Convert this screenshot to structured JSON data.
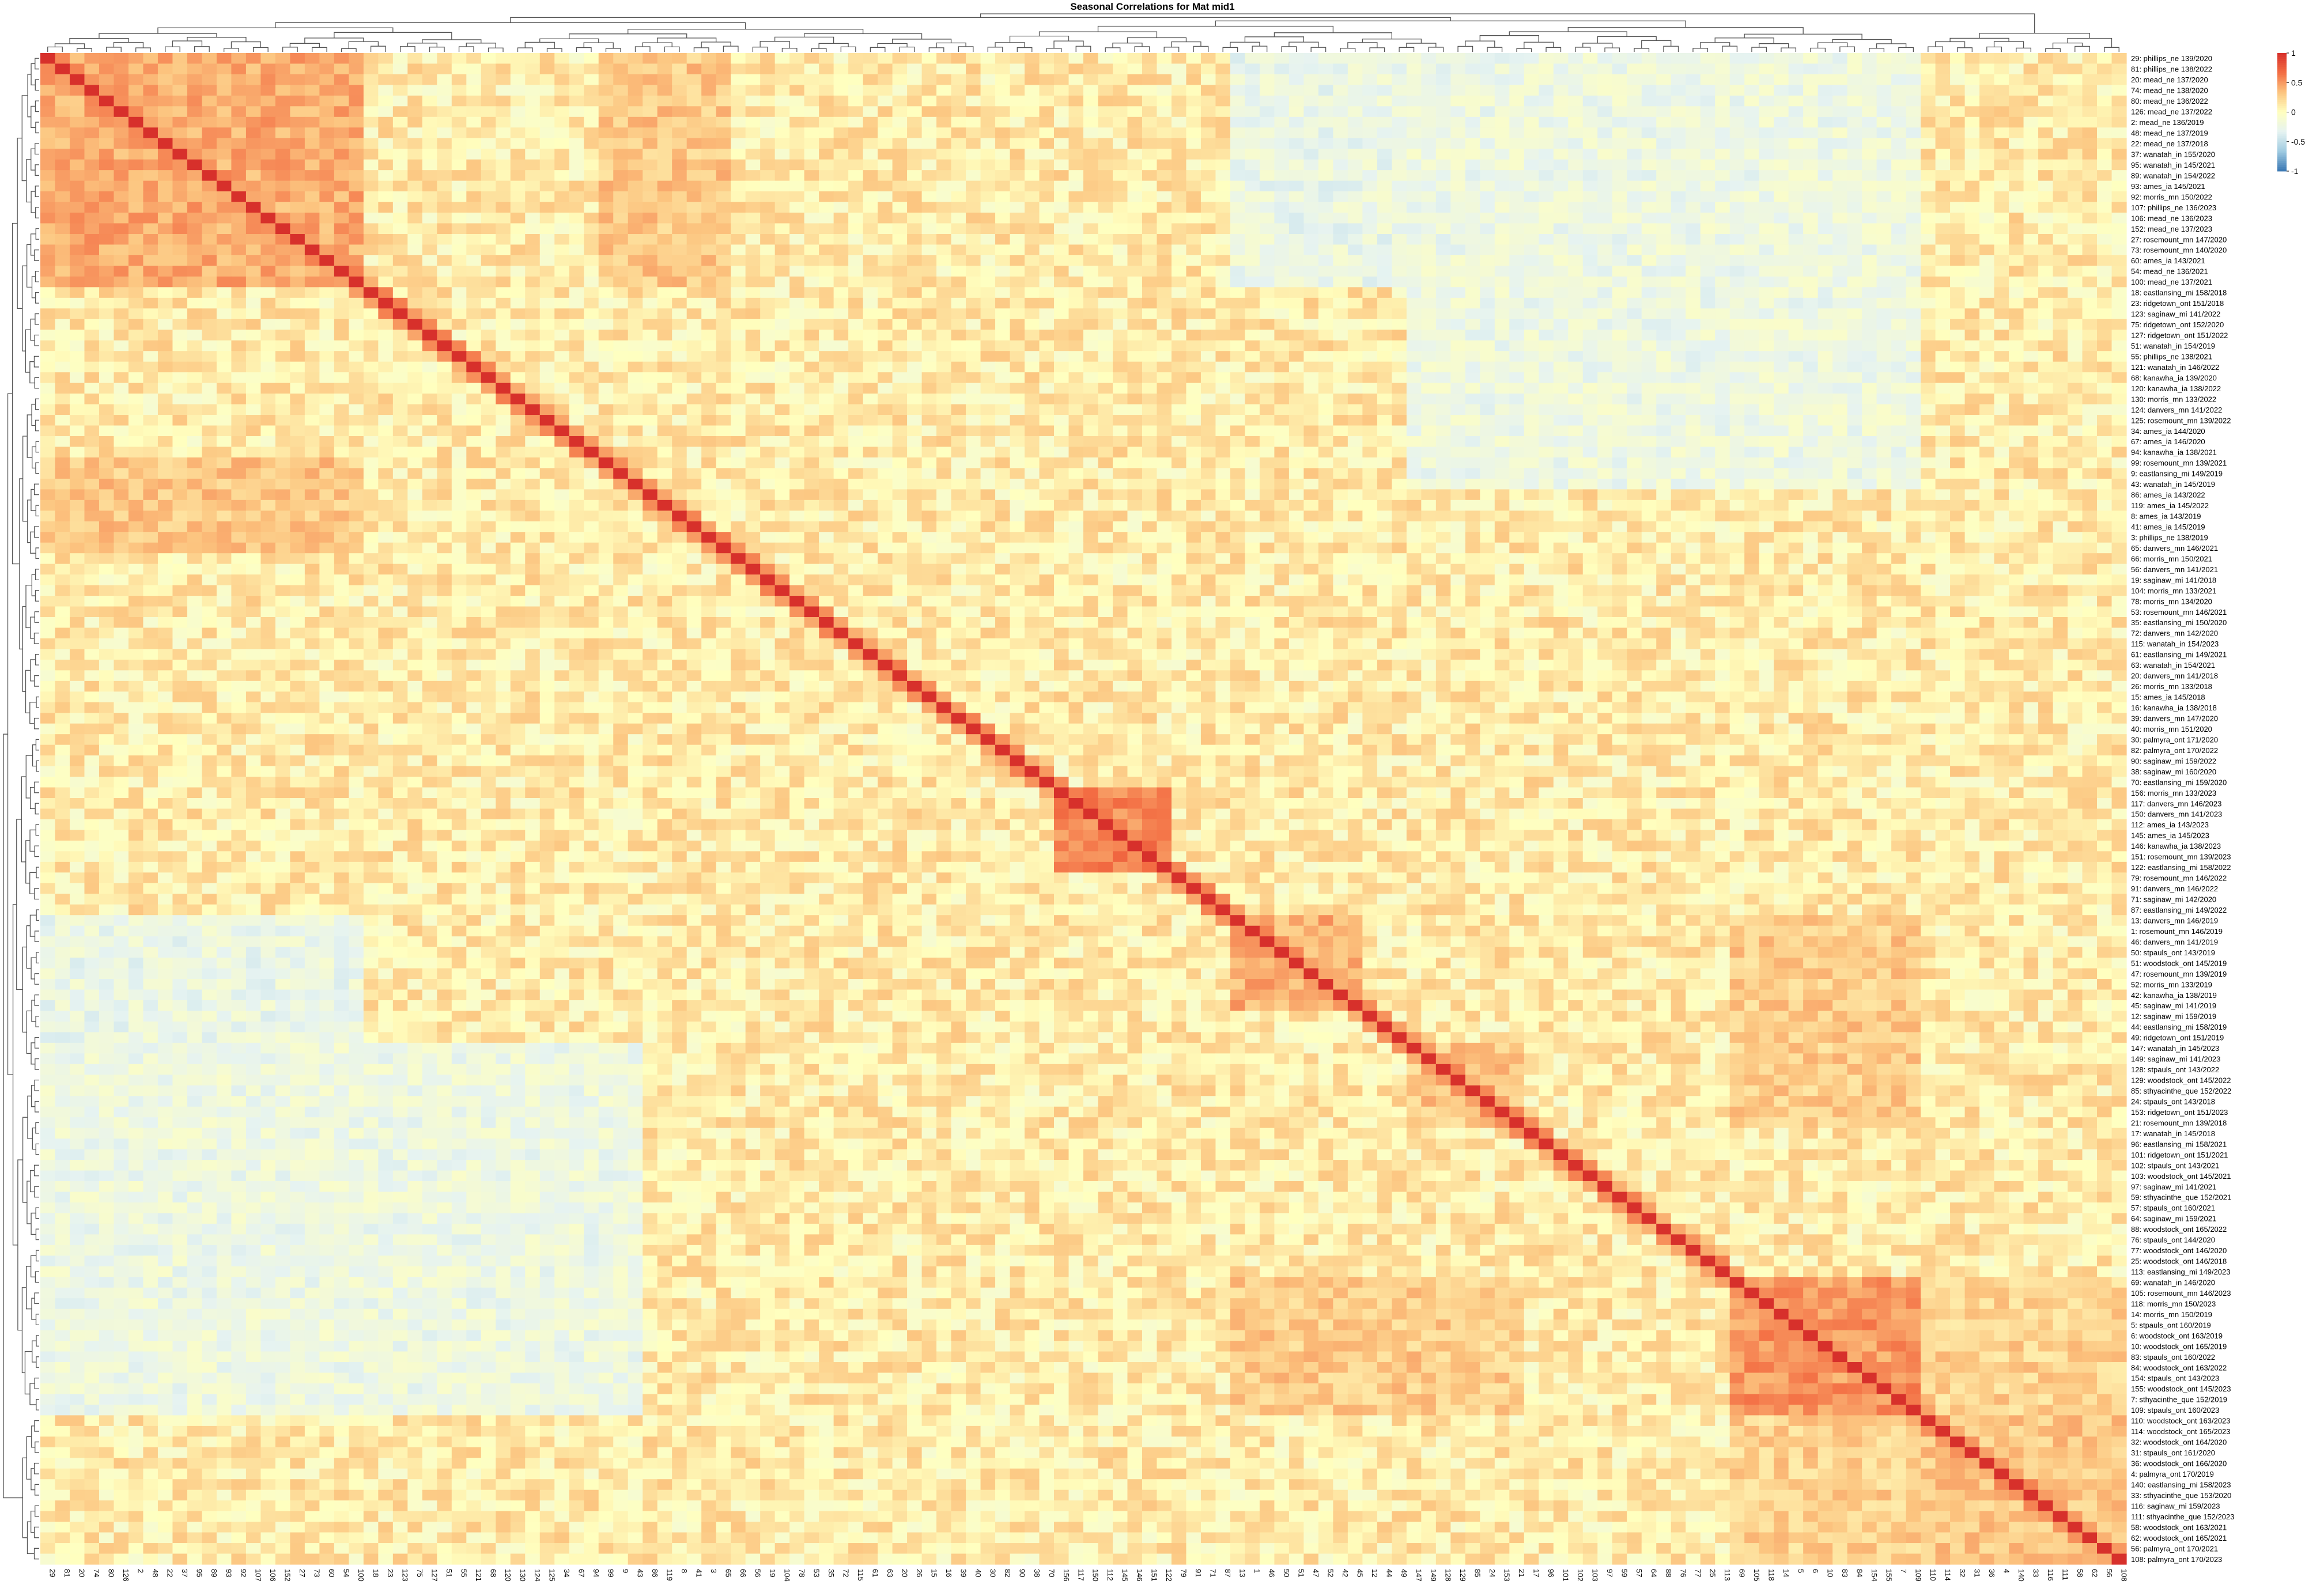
{
  "chart_data": {
    "type": "heatmap",
    "title": "Seasonal Correlations for Mat mid1",
    "xlabel": "",
    "ylabel": "",
    "value_range": [
      -1,
      1
    ],
    "colorbar": {
      "ticks": [
        1,
        0.5,
        0,
        -0.5,
        -1
      ],
      "tick_labels": [
        "1",
        "0.5",
        "0",
        "-0.5",
        "-1"
      ],
      "colors": [
        "#3A77B3",
        "#9FCBE1",
        "#E6F3F1",
        "#FFFFBF",
        "#FCC47F",
        "#F36D43",
        "#D7302B"
      ]
    },
    "row_labels": [
      "29: phillips_ne 139/2020",
      "81: phillips_ne 138/2022",
      "20: mead_ne 137/2020",
      "74: mead_ne 138/2020",
      "80: mead_ne 136/2022",
      "126: mead_ne 137/2022",
      "2: mead_ne 136/2019",
      "48: mead_ne 137/2019",
      "22: mead_ne 137/2018",
      "37: wanatah_in 155/2020",
      "95: wanatah_in 145/2021",
      "89: wanatah_in 154/2022",
      "93: ames_ia 145/2021",
      "92: morris_mn 150/2022",
      "107: phillips_ne 136/2023",
      "106: mead_ne 136/2023",
      "152: mead_ne 137/2023",
      "27: rosemount_mn 147/2020",
      "73: rosemount_mn 140/2020",
      "60: ames_ia 143/2021",
      "54: mead_ne 136/2021",
      "100: mead_ne 137/2021",
      "18: eastlansing_mi 158/2018",
      "23: ridgetown_ont 151/2018",
      "123: saginaw_mi 141/2022",
      "75: ridgetown_ont 152/2020",
      "127: ridgetown_ont 151/2022",
      "51: wanatah_in 154/2019",
      "55: phillips_ne 138/2021",
      "121: wanatah_in 146/2022",
      "68: kanawha_ia 139/2020",
      "120: kanawha_ia 138/2022",
      "130: morris_mn 133/2022",
      "124: danvers_mn 141/2022",
      "125: rosemount_mn 139/2022",
      "34: ames_ia 144/2020",
      "67: ames_ia 146/2020",
      "94: kanawha_ia 138/2021",
      "99: rosemount_mn 139/2021",
      "9: eastlansing_mi 149/2019",
      "43: wanatah_in 145/2019",
      "86: ames_ia 143/2022",
      "119: ames_ia 145/2022",
      "8: ames_ia 143/2019",
      "41: ames_ia 145/2019",
      "3: phillips_ne 138/2019",
      "65: danvers_mn 146/2021",
      "66: morris_mn 150/2021",
      "56: danvers_mn 141/2021",
      "19: saginaw_mi 141/2018",
      "104: morris_mn 133/2021",
      "78: morris_mn 134/2020",
      "53: rosemount_mn 146/2021",
      "35: eastlansing_mi 150/2020",
      "72: danvers_mn 142/2020",
      "115: wanatah_in 154/2023",
      "61: eastlansing_mi 149/2021",
      "63: wanatah_in 154/2021",
      "20: danvers_mn 141/2018",
      "26: morris_mn 133/2018",
      "15: ames_ia 145/2018",
      "16: kanawha_ia 138/2018",
      "39: danvers_mn 147/2020",
      "40: morris_mn 151/2020",
      "30: palmyra_ont 171/2020",
      "82: palmyra_ont 170/2022",
      "90: saginaw_mi 159/2022",
      "38: saginaw_mi 160/2020",
      "70: eastlansing_mi 159/2020",
      "156: morris_mn 133/2023",
      "117: danvers_mn 146/2023",
      "150: danvers_mn 141/2023",
      "112: ames_ia 143/2023",
      "145: ames_ia 145/2023",
      "146: kanawha_ia 138/2023",
      "151: rosemount_mn 139/2023",
      "122: eastlansing_mi 158/2022",
      "79: rosemount_mn 146/2022",
      "91: danvers_mn 146/2022",
      "71: saginaw_mi 142/2020",
      "87: eastlansing_mi 149/2022",
      "13: danvers_mn 146/2019",
      "1: rosemount_mn 146/2019",
      "46: danvers_mn 141/2019",
      "50: stpauls_ont 143/2019",
      "51: woodstock_ont 145/2019",
      "47: rosemount_mn 139/2019",
      "52: morris_mn 133/2019",
      "42: kanawha_ia 138/2019",
      "45: saginaw_mi 141/2019",
      "12: saginaw_mi 159/2019",
      "44: eastlansing_mi 158/2019",
      "49: ridgetown_ont 151/2019",
      "147: wanatah_in 145/2023",
      "149: saginaw_mi 141/2023",
      "128: stpauls_ont 143/2022",
      "129: woodstock_ont 145/2022",
      "85: sthyacinthe_que 152/2022",
      "24: stpauls_ont 143/2018",
      "153: ridgetown_ont 151/2023",
      "21: rosemount_mn 139/2018",
      "17: wanatah_in 145/2018",
      "96: eastlansing_mi 158/2021",
      "101: ridgetown_ont 151/2021",
      "102: stpauls_ont 143/2021",
      "103: woodstock_ont 145/2021",
      "97: saginaw_mi 141/2021",
      "59: sthyacinthe_que 152/2021",
      "57: stpauls_ont 160/2021",
      "64: saginaw_mi 159/2021",
      "88: woodstock_ont 165/2022",
      "76: stpauls_ont 144/2020",
      "77: woodstock_ont 146/2020",
      "25: woodstock_ont 146/2018",
      "113: eastlansing_mi 149/2023",
      "69: wanatah_in 146/2020",
      "105: rosemount_mn 146/2023",
      "118: morris_mn 150/2023",
      "14: morris_mn 150/2019",
      "5: stpauls_ont 160/2019",
      "6: woodstock_ont 163/2019",
      "10: woodstock_ont 165/2019",
      "83: stpauls_ont 160/2022",
      "84: woodstock_ont 163/2022",
      "154: stpauls_ont 143/2023",
      "155: woodstock_ont 145/2023",
      "7: sthyacinthe_que 152/2019",
      "109: stpauls_ont 160/2023",
      "110: woodstock_ont 163/2023",
      "114: woodstock_ont 165/2023",
      "32: woodstock_ont 164/2020",
      "31: stpauls_ont 161/2020",
      "36: woodstock_ont 166/2020",
      "4: palmyra_ont 170/2019",
      "140: eastlansing_mi 158/2023",
      "33: sthyacinthe_que 153/2020",
      "116: saginaw_mi 159/2023",
      "111: sthyacinthe_que 152/2023",
      "58: woodstock_ont 163/2021",
      "62: woodstock_ont 165/2021",
      "56: palmyra_ont 170/2021",
      "108: palmyra_ont 170/2023"
    ],
    "col_labels": [
      "29",
      "81",
      "20",
      "74",
      "80",
      "126",
      "2",
      "48",
      "22",
      "37",
      "95",
      "89",
      "93",
      "92",
      "107",
      "106",
      "152",
      "27",
      "73",
      "60",
      "54",
      "100",
      "18",
      "23",
      "123",
      "75",
      "127",
      "51",
      "55",
      "121",
      "68",
      "120",
      "130",
      "124",
      "125",
      "34",
      "67",
      "94",
      "99",
      "9",
      "43",
      "86",
      "119",
      "8",
      "41",
      "3",
      "65",
      "66",
      "56",
      "19",
      "104",
      "78",
      "53",
      "35",
      "72",
      "115",
      "61",
      "63",
      "20",
      "26",
      "15",
      "16",
      "39",
      "40",
      "30",
      "82",
      "90",
      "38",
      "70",
      "156",
      "117",
      "150",
      "112",
      "145",
      "146",
      "151",
      "122",
      "79",
      "91",
      "71",
      "87",
      "13",
      "1",
      "46",
      "50",
      "51",
      "47",
      "52",
      "42",
      "45",
      "12",
      "44",
      "49",
      "147",
      "149",
      "128",
      "129",
      "85",
      "24",
      "153",
      "21",
      "17",
      "96",
      "101",
      "102",
      "103",
      "97",
      "59",
      "57",
      "64",
      "88",
      "76",
      "77",
      "25",
      "113",
      "69",
      "105",
      "118",
      "14",
      "5",
      "6",
      "10",
      "83",
      "84",
      "154",
      "155",
      "7",
      "109",
      "110",
      "114",
      "32",
      "31",
      "36",
      "4",
      "140",
      "33",
      "116",
      "111",
      "58",
      "62",
      "56",
      "108"
    ],
    "blocks": [
      {
        "rows": [
          0,
          21
        ],
        "cols": [
          0,
          21
        ],
        "value": 0.42
      },
      {
        "rows": [
          0,
          21
        ],
        "cols": [
          38,
          46
        ],
        "value": 0.3
      },
      {
        "rows": [
          38,
          46
        ],
        "cols": [
          0,
          21
        ],
        "value": 0.3
      },
      {
        "rows": [
          69,
          76
        ],
        "cols": [
          69,
          76
        ],
        "value": 0.58
      },
      {
        "rows": [
          81,
          89
        ],
        "cols": [
          81,
          89
        ],
        "value": 0.4
      },
      {
        "rows": [
          93,
          100
        ],
        "cols": [
          93,
          100
        ],
        "value": 0.3
      },
      {
        "rows": [
          115,
          127
        ],
        "cols": [
          115,
          127
        ],
        "value": 0.5
      },
      {
        "rows": [
          115,
          127
        ],
        "cols": [
          81,
          100
        ],
        "value": 0.28
      },
      {
        "rows": [
          81,
          100
        ],
        "cols": [
          115,
          127
        ],
        "value": 0.28
      },
      {
        "rows": [
          115,
          127
        ],
        "cols": [
          0,
          21
        ],
        "value": -0.45
      },
      {
        "rows": [
          0,
          21
        ],
        "cols": [
          115,
          127
        ],
        "value": -0.45
      },
      {
        "rows": [
          0,
          21
        ],
        "cols": [
          81,
          100
        ],
        "value": -0.25
      },
      {
        "rows": [
          81,
          100
        ],
        "cols": [
          0,
          21
        ],
        "value": -0.25
      },
      {
        "rows": [
          128,
          141
        ],
        "cols": [
          128,
          141
        ],
        "value": 0.3
      },
      {
        "rows": [
          128,
          141
        ],
        "cols": [
          115,
          127
        ],
        "value": 0.25
      },
      {
        "rows": [
          115,
          127
        ],
        "cols": [
          128,
          141
        ],
        "value": 0.25
      },
      {
        "rows": [
          93,
          127
        ],
        "cols": [
          0,
          40
        ],
        "value": -0.22
      },
      {
        "rows": [
          0,
          40
        ],
        "cols": [
          93,
          127
        ],
        "value": -0.22
      }
    ],
    "diagonal_value": 1,
    "dendrogram": {
      "rows": true,
      "cols": true
    },
    "legend_position": "top-right"
  }
}
